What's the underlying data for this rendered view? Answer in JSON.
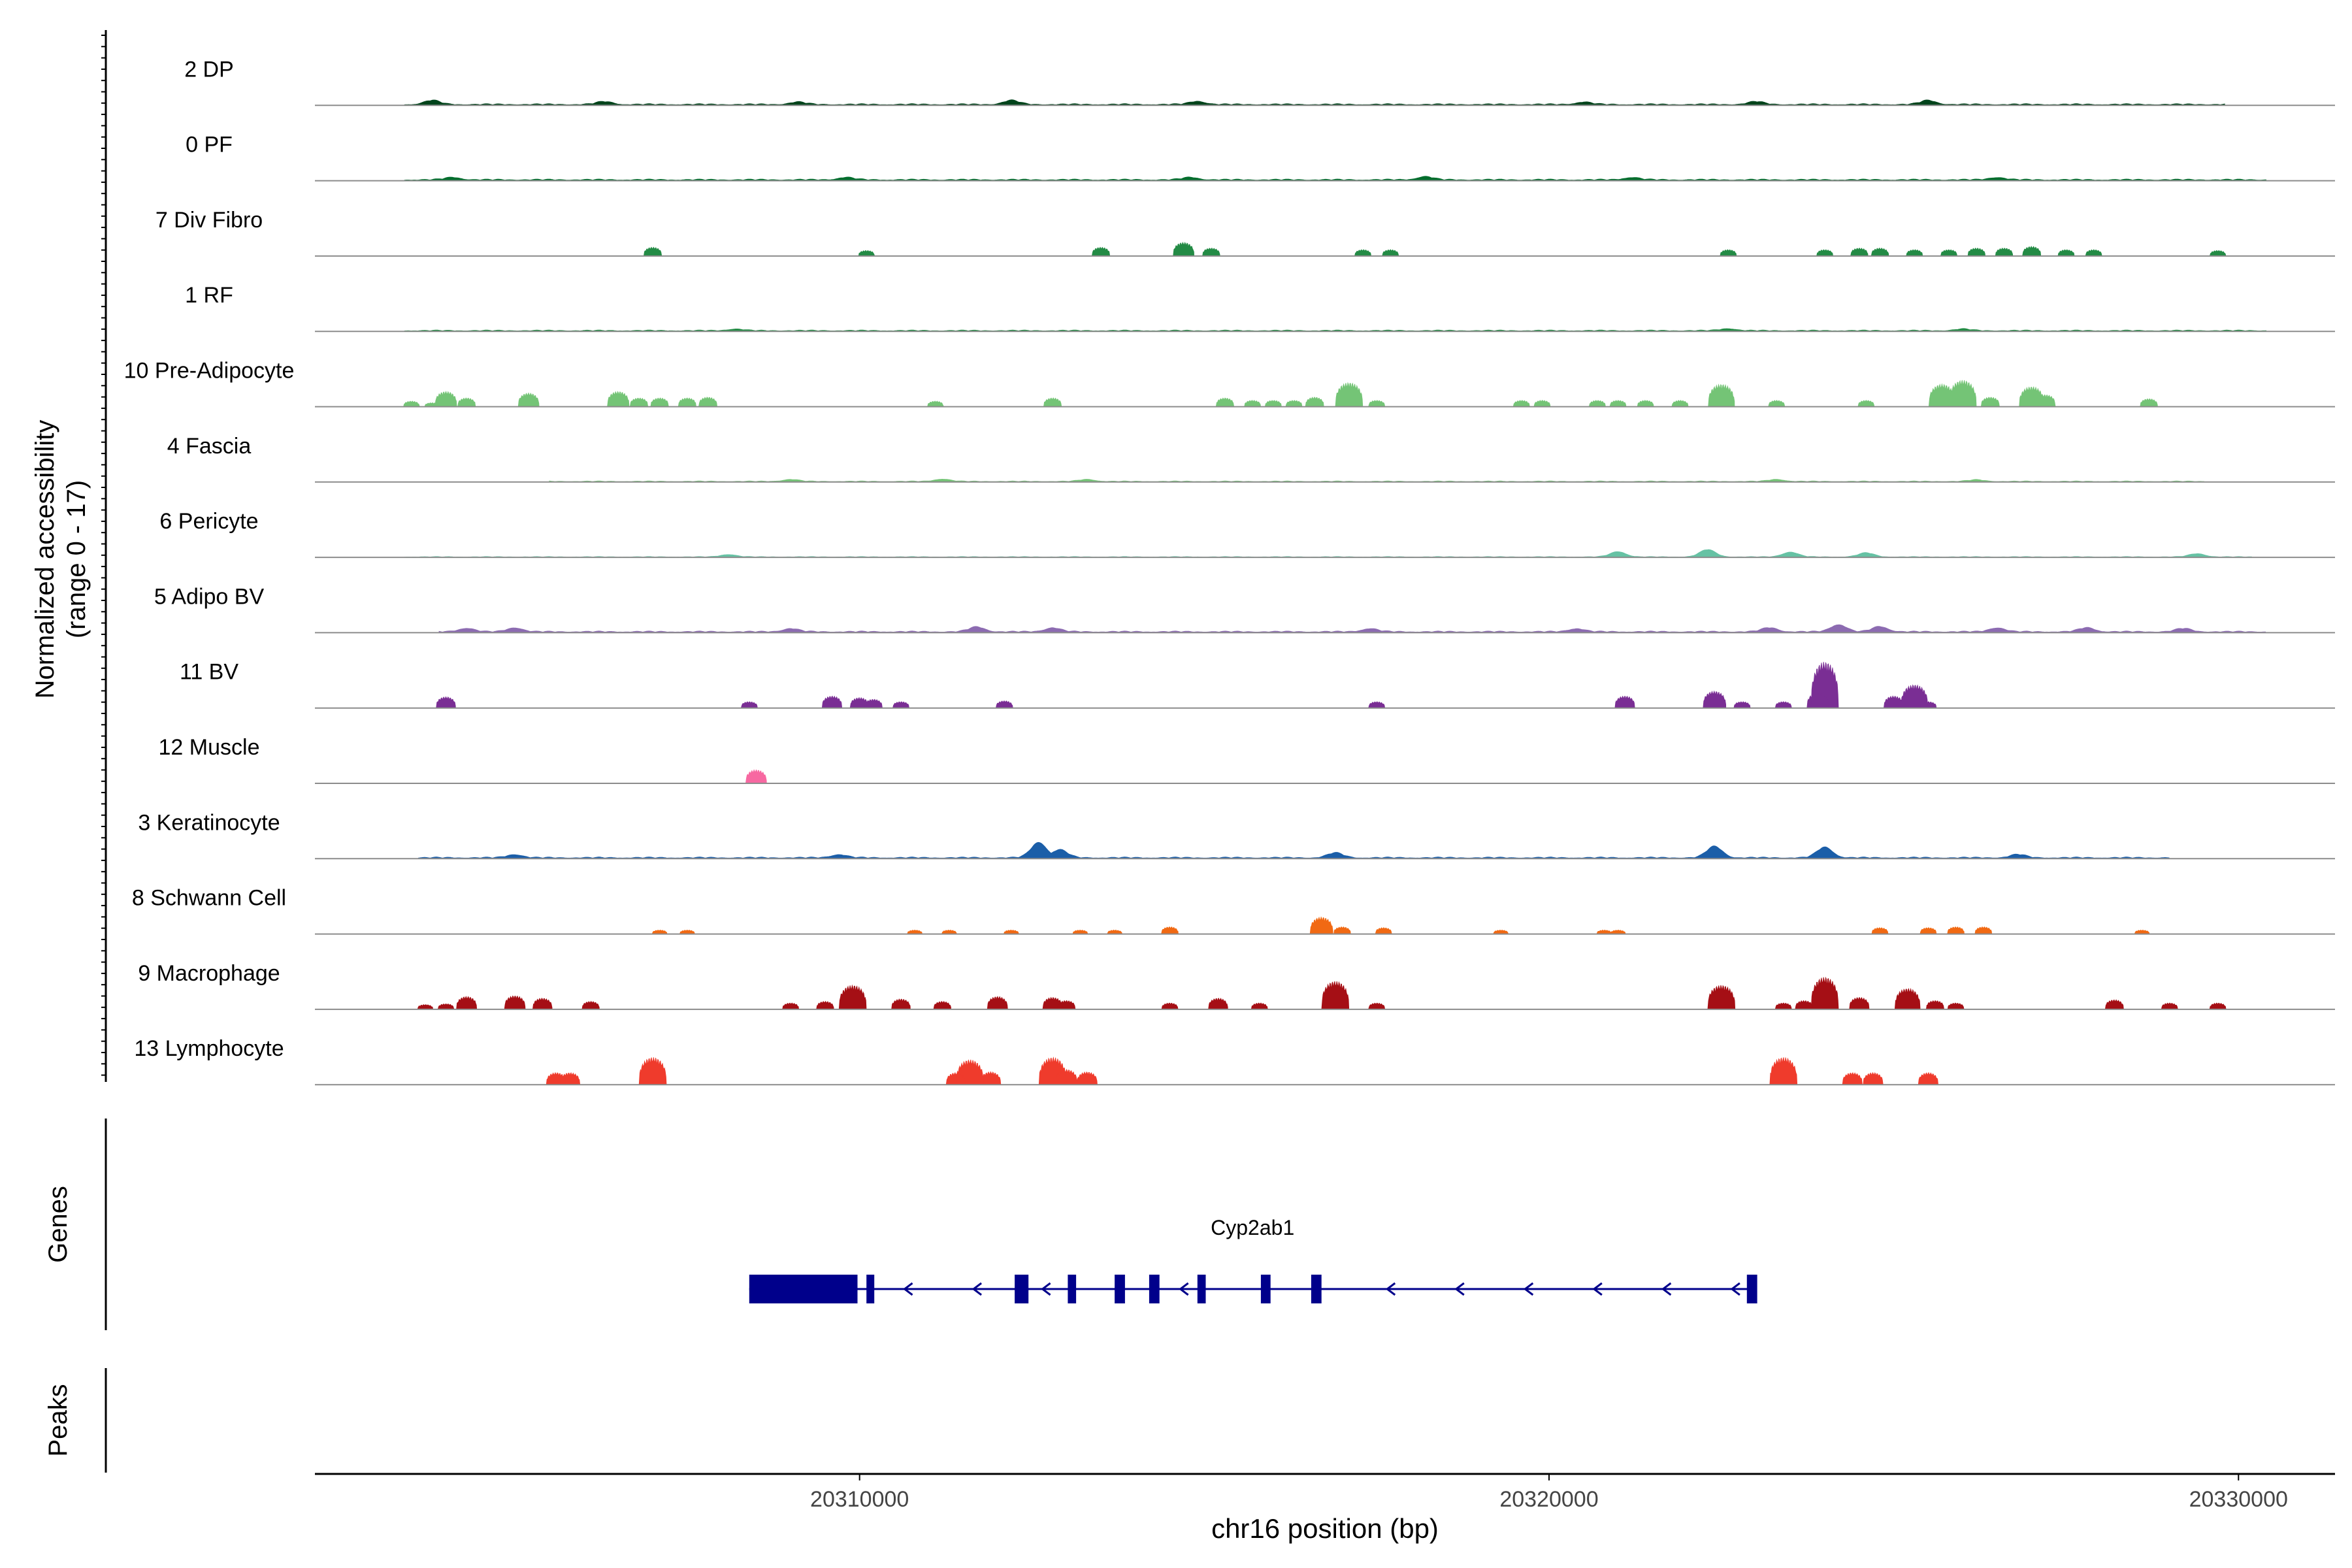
{
  "chart_data": {
    "type": "coverage-track",
    "y_axis_title": "Normalized accessibility",
    "y_axis_subtitle": "(range 0 - 17)",
    "ylim": [
      0,
      17
    ],
    "x_axis_title": "chr16 position (bp)",
    "x_ticks": [
      20310000,
      20320000,
      20330000
    ],
    "x_tick_labels": [
      "20310000",
      "20320000",
      "20330000"
    ],
    "xlim": [
      20302100,
      20331400
    ],
    "genes_label": "Genes",
    "peaks_label": "Peaks",
    "tracks": [
      {
        "name": "2 DP",
        "color": "#00441b",
        "mode": "continuous",
        "range": [
          20303400,
          20329800
        ],
        "base": 0.35,
        "peaks": [
          [
            20303800,
            1.0
          ],
          [
            20306300,
            0.7
          ],
          [
            20309100,
            0.6
          ],
          [
            20312200,
            1.0
          ],
          [
            20314900,
            0.8
          ],
          [
            20320500,
            0.6
          ],
          [
            20323000,
            0.7
          ],
          [
            20325500,
            1.0
          ]
        ]
      },
      {
        "name": "0 PF",
        "color": "#006d2c",
        "mode": "continuous",
        "range": [
          20303400,
          20330400
        ],
        "base": 0.35,
        "peaks": [
          [
            20304100,
            0.6
          ],
          [
            20309800,
            0.6
          ],
          [
            20314800,
            0.6
          ],
          [
            20318200,
            0.8
          ],
          [
            20321200,
            0.6
          ],
          [
            20326500,
            0.6
          ]
        ]
      },
      {
        "name": "7 Div Fibro",
        "color": "#238b45",
        "mode": "sparse",
        "peaks": [
          [
            20307000,
            2.2
          ],
          [
            20310100,
            1.4
          ],
          [
            20313500,
            2.2
          ],
          [
            20314700,
            3.4
          ],
          [
            20315100,
            2.0
          ],
          [
            20317300,
            1.6
          ],
          [
            20317700,
            1.6
          ],
          [
            20322600,
            1.6
          ],
          [
            20324000,
            1.6
          ],
          [
            20324500,
            2.0
          ],
          [
            20324800,
            2.0
          ],
          [
            20325300,
            1.6
          ],
          [
            20325800,
            1.6
          ],
          [
            20326200,
            2.0
          ],
          [
            20326600,
            2.0
          ],
          [
            20327000,
            2.4
          ],
          [
            20327500,
            1.6
          ],
          [
            20327900,
            1.6
          ],
          [
            20329700,
            1.4
          ]
        ]
      },
      {
        "name": "1 RF",
        "color": "#238b45",
        "mode": "continuous",
        "range": [
          20303400,
          20330400
        ],
        "base": 0.28,
        "peaks": [
          [
            20308200,
            0.4
          ],
          [
            20322600,
            0.5
          ],
          [
            20326000,
            0.4
          ]
        ]
      },
      {
        "name": "10 Pre-Adipocyte",
        "color": "#74c476",
        "mode": "sparse",
        "peaks": [
          [
            20303500,
            1.4
          ],
          [
            20303800,
            1.0
          ],
          [
            20304000,
            3.8
          ],
          [
            20304300,
            2.2
          ],
          [
            20305200,
            3.4
          ],
          [
            20306500,
            3.8
          ],
          [
            20306800,
            2.2
          ],
          [
            20307100,
            2.2
          ],
          [
            20307500,
            2.2
          ],
          [
            20307800,
            2.4
          ],
          [
            20311100,
            1.4
          ],
          [
            20312800,
            2.2
          ],
          [
            20315300,
            2.2
          ],
          [
            20315700,
            1.6
          ],
          [
            20316000,
            1.6
          ],
          [
            20316300,
            1.6
          ],
          [
            20316600,
            2.4
          ],
          [
            20317100,
            6.0
          ],
          [
            20317500,
            1.6
          ],
          [
            20319600,
            1.6
          ],
          [
            20319900,
            1.6
          ],
          [
            20320700,
            1.6
          ],
          [
            20321000,
            1.6
          ],
          [
            20321400,
            1.6
          ],
          [
            20321900,
            1.6
          ],
          [
            20322500,
            5.6
          ],
          [
            20323300,
            1.6
          ],
          [
            20324600,
            1.6
          ],
          [
            20325700,
            5.6
          ],
          [
            20326000,
            6.6
          ],
          [
            20326400,
            2.4
          ],
          [
            20327000,
            5.0
          ],
          [
            20327200,
            3.0
          ],
          [
            20328700,
            2.0
          ]
        ]
      },
      {
        "name": "4 Fascia",
        "color": "#74c476",
        "mode": "continuous",
        "range": [
          20305500,
          20329500
        ],
        "base": 0.22,
        "peaks": [
          [
            20309000,
            0.5
          ],
          [
            20311200,
            0.6
          ],
          [
            20313300,
            0.5
          ],
          [
            20323300,
            0.5
          ],
          [
            20326200,
            0.4
          ]
        ]
      },
      {
        "name": "6 Pericyte",
        "color": "#66c2a4",
        "mode": "continuous",
        "range": [
          20303400,
          20330200
        ],
        "base": 0.18,
        "peaks": [
          [
            20321000,
            1.3
          ],
          [
            20322300,
            1.8
          ],
          [
            20323500,
            1.2
          ],
          [
            20324600,
            1.0
          ],
          [
            20329400,
            0.8
          ],
          [
            20308100,
            0.6
          ]
        ]
      },
      {
        "name": "5 Adipo BV",
        "color": "#8c6bb1",
        "mode": "continuous",
        "range": [
          20303900,
          20330400
        ],
        "base": 0.35,
        "peaks": [
          [
            20304300,
            0.9
          ],
          [
            20305000,
            1.0
          ],
          [
            20309000,
            0.8
          ],
          [
            20311700,
            1.2
          ],
          [
            20312800,
            1.0
          ],
          [
            20317400,
            0.8
          ],
          [
            20320400,
            0.8
          ],
          [
            20323200,
            1.0
          ],
          [
            20324200,
            1.8
          ],
          [
            20324800,
            1.3
          ],
          [
            20326500,
            1.0
          ],
          [
            20327800,
            1.0
          ],
          [
            20329200,
            0.8
          ]
        ]
      },
      {
        "name": "11 BV",
        "color": "#7a2e94",
        "mode": "sparse",
        "peaks": [
          [
            20304000,
            2.8
          ],
          [
            20308400,
            1.6
          ],
          [
            20309600,
            3.0
          ],
          [
            20310000,
            2.6
          ],
          [
            20310200,
            2.2
          ],
          [
            20310600,
            1.6
          ],
          [
            20312100,
            1.8
          ],
          [
            20317500,
            1.6
          ],
          [
            20321100,
            3.0
          ],
          [
            20322400,
            4.2
          ],
          [
            20322800,
            1.6
          ],
          [
            20323400,
            1.6
          ],
          [
            20323900,
            3.8
          ],
          [
            20324000,
            11.5
          ],
          [
            20325000,
            3.0
          ],
          [
            20325300,
            5.8
          ],
          [
            20325500,
            1.6
          ]
        ]
      },
      {
        "name": "12 Muscle",
        "color": "#f768a1",
        "mode": "sparse",
        "peaks": [
          [
            20308500,
            3.4
          ]
        ]
      },
      {
        "name": "3 Keratinocyte",
        "color": "#1b5ea8",
        "mode": "continuous",
        "range": [
          20303600,
          20329000
        ],
        "base": 0.35,
        "peaks": [
          [
            20305000,
            0.8
          ],
          [
            20309700,
            0.8
          ],
          [
            20312600,
            3.8
          ],
          [
            20312900,
            2.0
          ],
          [
            20316900,
            1.2
          ],
          [
            20322400,
            2.8
          ],
          [
            20324000,
            2.6
          ],
          [
            20326800,
            0.8
          ]
        ]
      },
      {
        "name": "8 Schwann Cell",
        "color": "#f16913",
        "mode": "sparse",
        "peaks": [
          [
            20307100,
            1.0
          ],
          [
            20307500,
            1.0
          ],
          [
            20310800,
            1.0
          ],
          [
            20311300,
            1.0
          ],
          [
            20312200,
            1.0
          ],
          [
            20313200,
            1.0
          ],
          [
            20313700,
            1.0
          ],
          [
            20314500,
            1.8
          ],
          [
            20316700,
            4.2
          ],
          [
            20317000,
            1.8
          ],
          [
            20317600,
            1.6
          ],
          [
            20319300,
            1.0
          ],
          [
            20320800,
            1.0
          ],
          [
            20321000,
            1.0
          ],
          [
            20324800,
            1.6
          ],
          [
            20325500,
            1.6
          ],
          [
            20325900,
            1.8
          ],
          [
            20326300,
            1.8
          ],
          [
            20328600,
            1.0
          ]
        ]
      },
      {
        "name": "9 Macrophage",
        "color": "#a50f15",
        "mode": "sparse",
        "peaks": [
          [
            20303700,
            1.2
          ],
          [
            20304000,
            1.4
          ],
          [
            20304300,
            3.2
          ],
          [
            20305000,
            3.4
          ],
          [
            20305400,
            2.8
          ],
          [
            20306100,
            2.0
          ],
          [
            20309000,
            1.6
          ],
          [
            20309500,
            2.0
          ],
          [
            20309900,
            6.0
          ],
          [
            20310600,
            2.6
          ],
          [
            20311200,
            2.0
          ],
          [
            20312000,
            3.2
          ],
          [
            20312800,
            3.0
          ],
          [
            20313000,
            2.2
          ],
          [
            20314500,
            1.6
          ],
          [
            20315200,
            2.8
          ],
          [
            20315800,
            1.6
          ],
          [
            20316900,
            7.0
          ],
          [
            20317500,
            1.6
          ],
          [
            20322500,
            6.0
          ],
          [
            20323400,
            1.6
          ],
          [
            20323700,
            2.2
          ],
          [
            20324000,
            8.0
          ],
          [
            20324500,
            3.0
          ],
          [
            20325200,
            5.2
          ],
          [
            20325600,
            2.2
          ],
          [
            20325900,
            1.6
          ],
          [
            20328200,
            2.4
          ],
          [
            20329000,
            1.6
          ],
          [
            20329700,
            1.6
          ]
        ]
      },
      {
        "name": "13 Lymphocyte",
        "color": "#ef3b2c",
        "mode": "sparse",
        "peaks": [
          [
            20305600,
            3.0
          ],
          [
            20305800,
            3.0
          ],
          [
            20307000,
            6.8
          ],
          [
            20311400,
            3.0
          ],
          [
            20311600,
            6.2
          ],
          [
            20311900,
            3.2
          ],
          [
            20312800,
            6.8
          ],
          [
            20313000,
            3.8
          ],
          [
            20313300,
            3.2
          ],
          [
            20323400,
            6.8
          ],
          [
            20324400,
            3.0
          ],
          [
            20324700,
            3.0
          ],
          [
            20325500,
            3.0
          ]
        ]
      }
    ],
    "gene": {
      "name": "Cyp2ab1",
      "strand": "-",
      "start": 20308400,
      "end": 20323000,
      "color": "#00008b",
      "exons": [
        [
          20308400,
          20309970
        ],
        [
          20310100,
          20310200
        ],
        [
          20312250,
          20312450
        ],
        [
          20313020,
          20313140
        ],
        [
          20313700,
          20313850
        ],
        [
          20314200,
          20314350
        ],
        [
          20314900,
          20315020
        ],
        [
          20315820,
          20315960
        ],
        [
          20316550,
          20316700
        ],
        [
          20322870,
          20323020
        ]
      ]
    }
  }
}
